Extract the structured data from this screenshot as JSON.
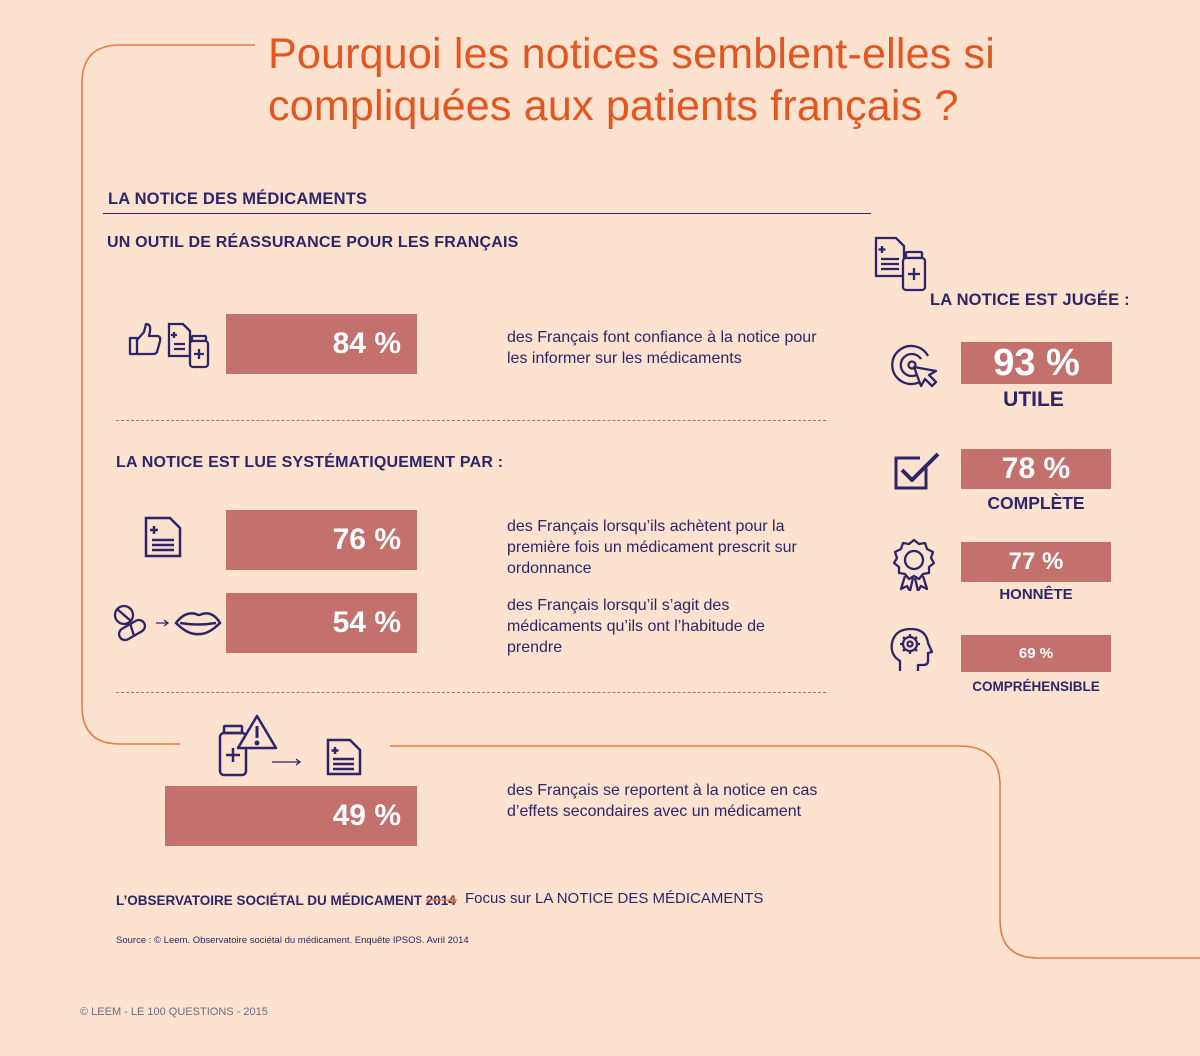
{
  "title": "Pourquoi les notices semblent-elles si compliquées aux patients français ?",
  "section_title": "LA NOTICE DES MÉDICAMENTS",
  "subtitle_trust": "UN OUTIL DE RÉASSURANCE POUR LES FRANÇAIS",
  "subtitle_read": "LA NOTICE EST LUE SYSTÉMATIQUEMENT PAR :",
  "subtitle_judged": "LA NOTICE EST JUGÉE :",
  "chart_data": [
    {
      "type": "bar",
      "title": "LA NOTICE DES MÉDICAMENTS",
      "unit": "%",
      "items": [
        {
          "value": 84,
          "label": "84 %",
          "text": "des Français font confiance à la notice pour les informer sur les médicaments"
        },
        {
          "value": 76,
          "label": "76 %",
          "text": "des Français lorsqu’ils achètent pour la première fois un médicament prescrit sur ordonnance"
        },
        {
          "value": 54,
          "label": "54 %",
          "text": "des Français lorsqu’il s’agit des médicaments qu’ils ont l’habitude de prendre"
        },
        {
          "value": 49,
          "label": "49 %",
          "text": "des Français se reportent à la notice en cas d’effets secondaires avec un médicament"
        }
      ]
    },
    {
      "type": "bar",
      "title": "LA NOTICE EST JUGÉE :",
      "unit": "%",
      "items": [
        {
          "value": 93,
          "label": "93 %",
          "category": "UTILE"
        },
        {
          "value": 78,
          "label": "78 %",
          "category": "COMPLÈTE"
        },
        {
          "value": 77,
          "label": "77 %",
          "category": "HONNÊTE"
        },
        {
          "value": 69,
          "label": "69 %",
          "category": "COMPRÉHENSIBLE"
        }
      ]
    }
  ],
  "footer": {
    "observatoire": "L’OBSERVATOIRE SOCIÉTAL DU MÉDICAMENT 2014",
    "focus": "Focus sur LA NOTICE DES MÉDICAMENTS",
    "source": "Source : © Leem. Observatoire sociétal du médicament. Enquête IPSOS. Avril 2014",
    "copyright": "© LEEM - LE 100 QUESTIONS - 2015"
  },
  "colors": {
    "background": "#fde2cf",
    "accent": "#e4561f",
    "bar": "#c4706c",
    "text": "#2c2568"
  },
  "icons": [
    "thumbs-up-icon",
    "document-icon",
    "medicine-bottle-icon",
    "pills-icon",
    "mouth-icon",
    "warning-icon",
    "target-icon",
    "checkbox-icon",
    "award-badge-icon",
    "head-gear-icon"
  ]
}
